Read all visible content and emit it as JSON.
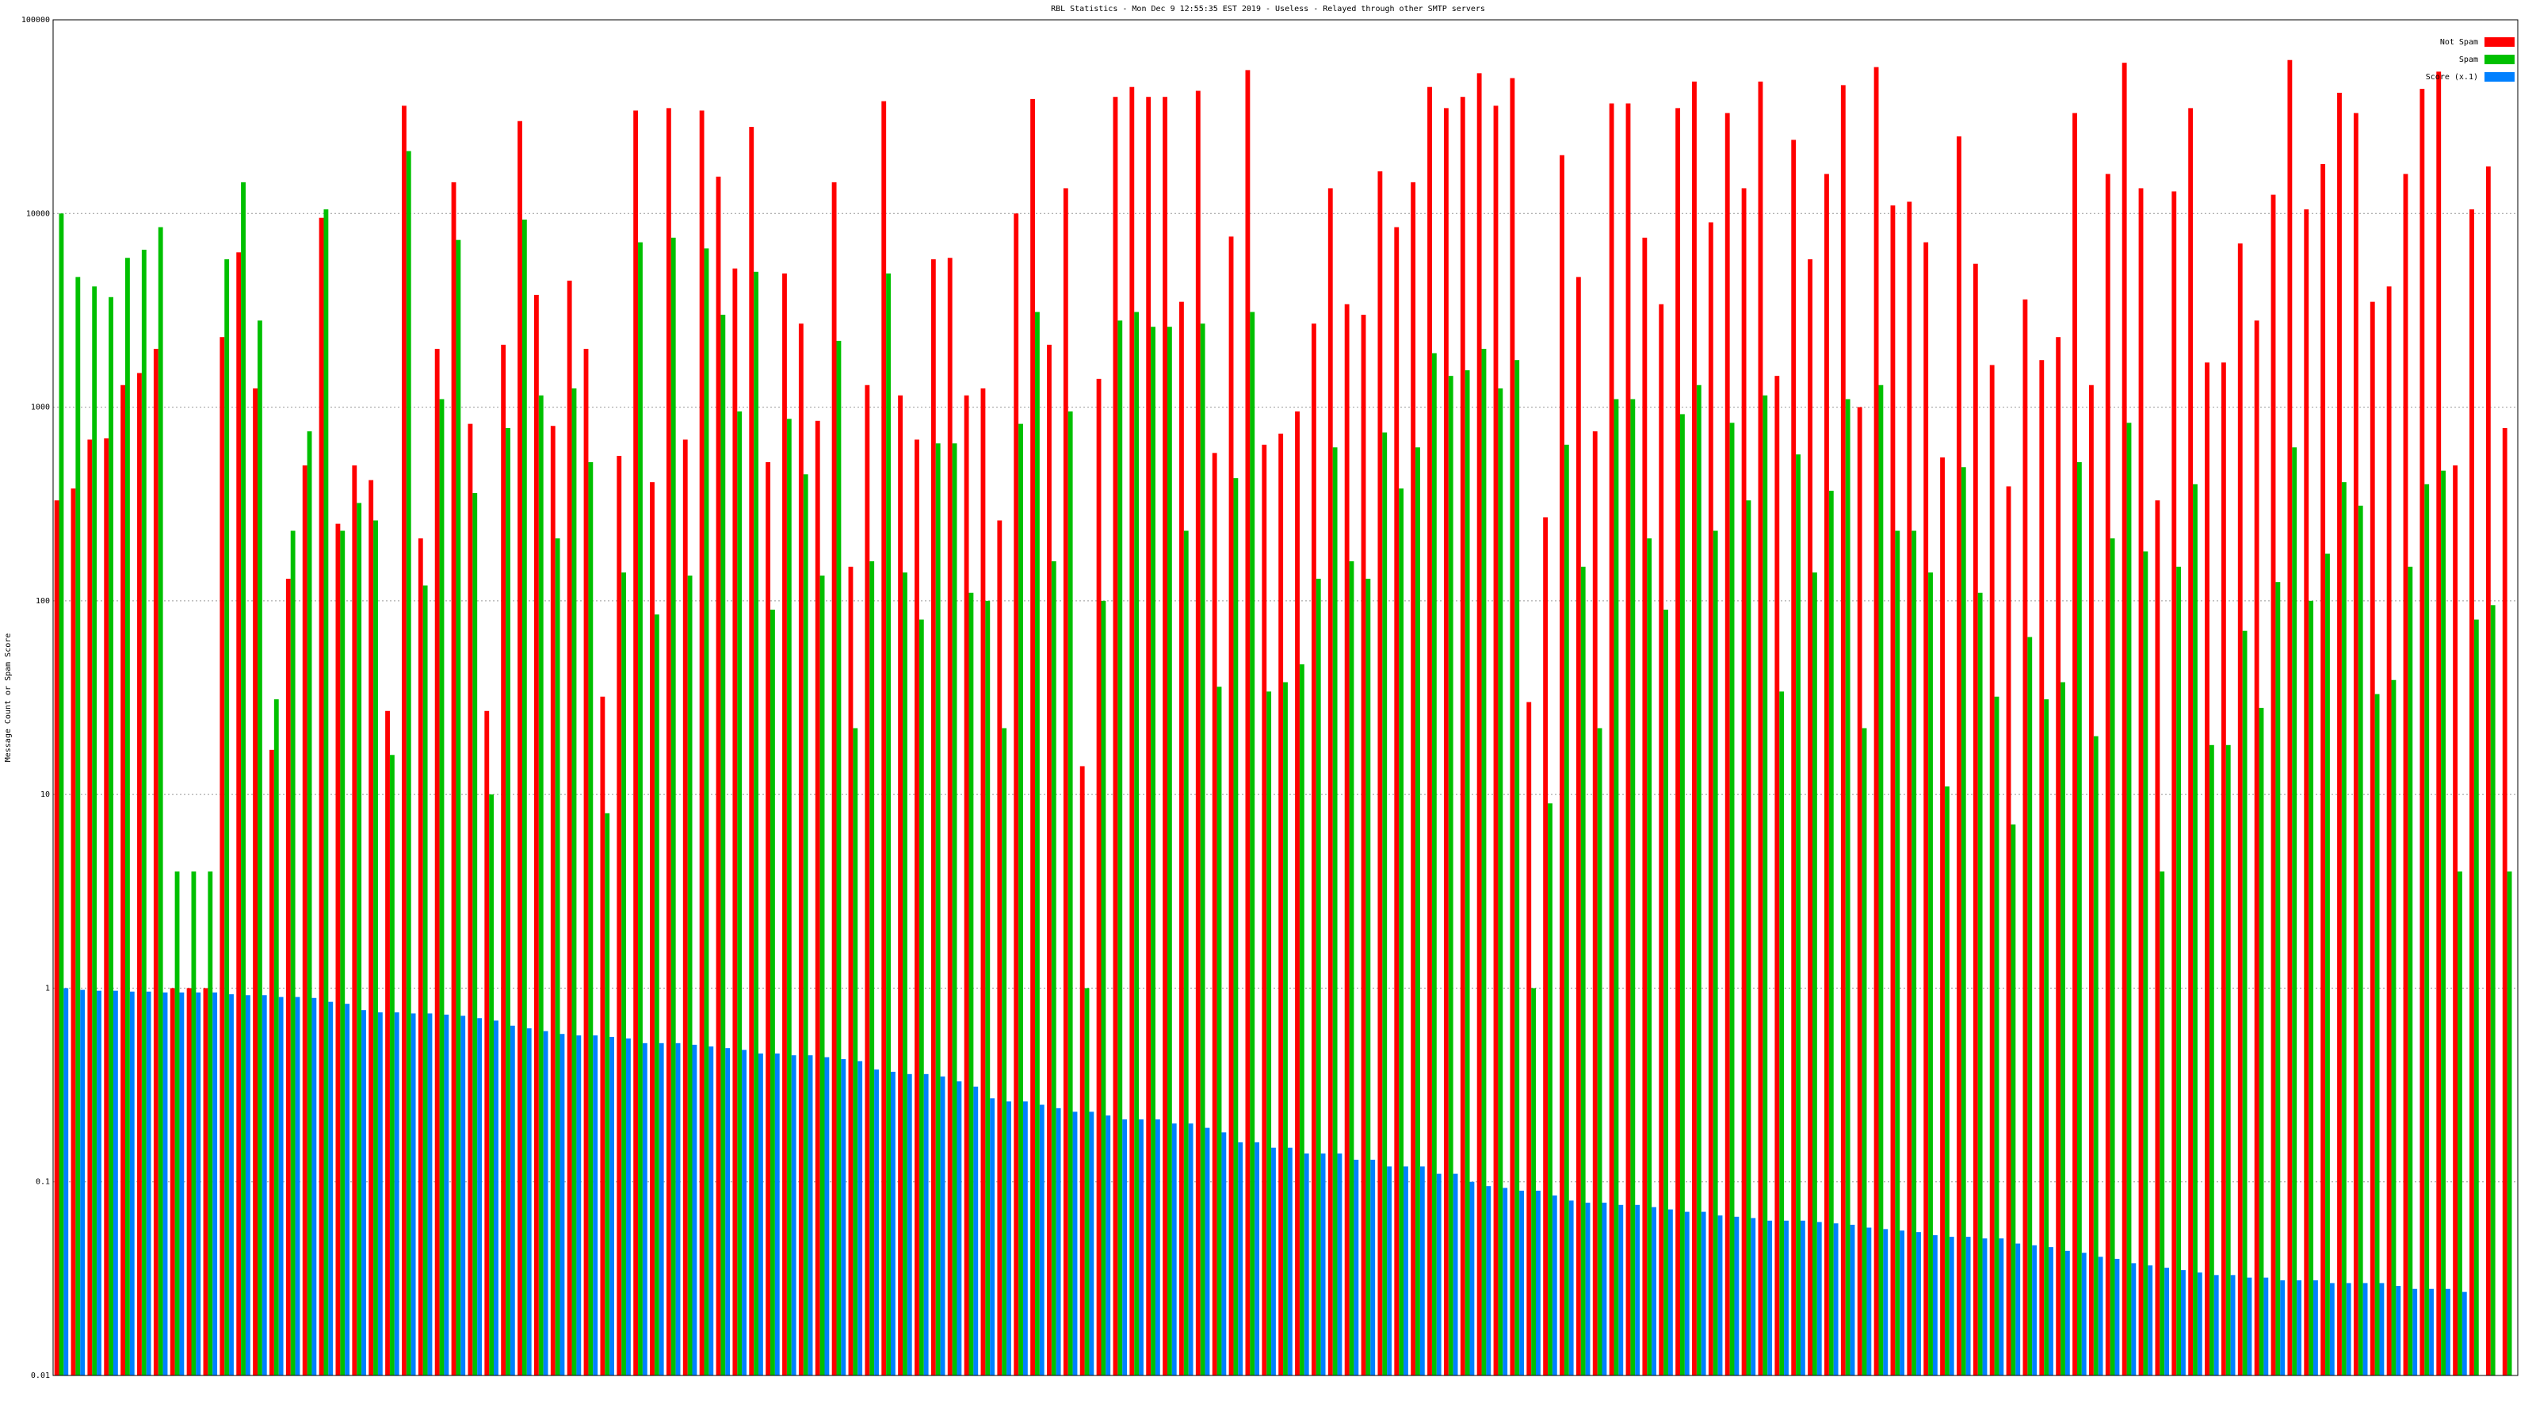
{
  "chart_data": {
    "type": "bar",
    "title": "RBL Statistics - Mon Dec  9 12:55:35 EST 2019 - Useless - Relayed through other SMTP servers",
    "y_label": "Message Count or Spam Score",
    "log_y": true,
    "grid": true,
    "legend": "upper right",
    "ylim": [
      0.01,
      100000
    ],
    "yticks": [
      0.01,
      0.1,
      1,
      10,
      100,
      1000,
      10000,
      100000
    ],
    "series": [
      {
        "name": "Not Spam",
        "color": "#ff0000",
        "values": [
          330,
          380,
          680,
          690,
          1300,
          1500,
          2000,
          1,
          1,
          1,
          2300,
          6300,
          1250,
          17,
          130,
          500,
          9500,
          250,
          500,
          420,
          27,
          36000,
          210,
          2000,
          14500,
          820,
          27,
          2100,
          30000,
          3800,
          800,
          4500,
          2000,
          32,
          560,
          34000,
          410,
          35000,
          680,
          34000,
          15500,
          5200,
          28000,
          520,
          4900,
          2700,
          850,
          14500,
          150,
          1300,
          38000,
          1150,
          680,
          5800,
          5900,
          1150,
          1250,
          260,
          10000,
          39000,
          2100,
          13500,
          14,
          1400,
          40000,
          45000,
          40000,
          40000,
          3500,
          43000,
          580,
          7600,
          55000,
          640,
          730,
          950,
          2700,
          13500,
          3400,
          3000,
          16500,
          8500,
          14500,
          45000,
          35000,
          40000,
          53000,
          36000,
          50000,
          30,
          270,
          20000,
          4700,
          750,
          37000,
          37000,
          7500,
          3400,
          35000,
          48000,
          9000,
          33000,
          13500,
          48000,
          1450,
          24000,
          5800,
          16000,
          46000,
          1000,
          57000,
          11000,
          11500,
          7100,
          550,
          25000,
          5500,
          1650,
          390,
          3600,
          1750,
          2300,
          33000,
          1300,
          16000,
          60000,
          13500,
          330,
          13000,
          35000,
          1700,
          1700,
          7000,
          2800,
          12500,
          62000,
          10500,
          18000,
          42000,
          33000,
          3500,
          4200,
          16000,
          44000,
          54000,
          500,
          10500,
          17500,
          780
        ]
      },
      {
        "name": "Spam",
        "color": "#00c000",
        "values": [
          10000,
          4700,
          4200,
          3700,
          5900,
          6500,
          8500,
          4,
          4,
          4,
          5800,
          14500,
          2800,
          31,
          230,
          750,
          10500,
          230,
          320,
          260,
          16,
          21000,
          120,
          1100,
          7300,
          360,
          10,
          780,
          9300,
          1150,
          210,
          1250,
          520,
          8,
          140,
          7100,
          85,
          7500,
          135,
          6600,
          3000,
          950,
          5000,
          90,
          870,
          450,
          135,
          2200,
          22,
          160,
          4900,
          140,
          80,
          650,
          650,
          110,
          100,
          22,
          820,
          3100,
          160,
          950,
          1,
          100,
          2800,
          3100,
          2600,
          2600,
          230,
          2700,
          36,
          430,
          3100,
          34,
          38,
          47,
          130,
          620,
          160,
          130,
          740,
          380,
          620,
          1900,
          1450,
          1550,
          2000,
          1250,
          1750,
          1,
          9,
          640,
          150,
          22,
          1100,
          1100,
          210,
          90,
          920,
          1300,
          230,
          830,
          330,
          1150,
          34,
          570,
          140,
          370,
          1100,
          22,
          1300,
          230,
          230,
          140,
          11,
          490,
          110,
          32,
          7,
          65,
          31,
          38,
          520,
          20,
          210,
          830,
          180,
          4,
          150,
          400,
          18,
          18,
          70,
          28,
          125,
          620,
          100,
          175,
          410,
          310,
          33,
          39,
          150,
          400,
          470,
          4,
          80,
          95,
          4
        ]
      },
      {
        "name": "Score (x.1)",
        "color": "#0080ff",
        "values": [
          1,
          0.98,
          0.97,
          0.97,
          0.96,
          0.96,
          0.95,
          0.95,
          0.95,
          0.95,
          0.93,
          0.92,
          0.92,
          0.9,
          0.9,
          0.89,
          0.85,
          0.83,
          0.77,
          0.75,
          0.75,
          0.74,
          0.74,
          0.73,
          0.72,
          0.7,
          0.68,
          0.64,
          0.62,
          0.6,
          0.58,
          0.57,
          0.57,
          0.56,
          0.55,
          0.52,
          0.52,
          0.52,
          0.51,
          0.5,
          0.49,
          0.48,
          0.46,
          0.46,
          0.45,
          0.45,
          0.44,
          0.43,
          0.42,
          0.38,
          0.37,
          0.36,
          0.36,
          0.35,
          0.33,
          0.31,
          0.27,
          0.26,
          0.26,
          0.25,
          0.24,
          0.23,
          0.23,
          0.22,
          0.21,
          0.21,
          0.21,
          0.2,
          0.2,
          0.19,
          0.18,
          0.16,
          0.16,
          0.15,
          0.15,
          0.14,
          0.14,
          0.14,
          0.13,
          0.13,
          0.12,
          0.12,
          0.12,
          0.11,
          0.11,
          0.1,
          0.095,
          0.093,
          0.09,
          0.09,
          0.085,
          0.08,
          0.078,
          0.078,
          0.076,
          0.076,
          0.074,
          0.072,
          0.07,
          0.07,
          0.067,
          0.066,
          0.065,
          0.063,
          0.063,
          0.063,
          0.062,
          0.061,
          0.06,
          0.058,
          0.057,
          0.056,
          0.055,
          0.053,
          0.052,
          0.052,
          0.051,
          0.051,
          0.048,
          0.047,
          0.046,
          0.044,
          0.043,
          0.041,
          0.04,
          0.038,
          0.037,
          0.036,
          0.035,
          0.034,
          0.033,
          0.033,
          0.032,
          0.032,
          0.031,
          0.031,
          0.031,
          0.03,
          0.03,
          0.03,
          0.03,
          0.029,
          0.028,
          0.028,
          0.028,
          0.027,
          null,
          null,
          null
        ]
      }
    ]
  }
}
